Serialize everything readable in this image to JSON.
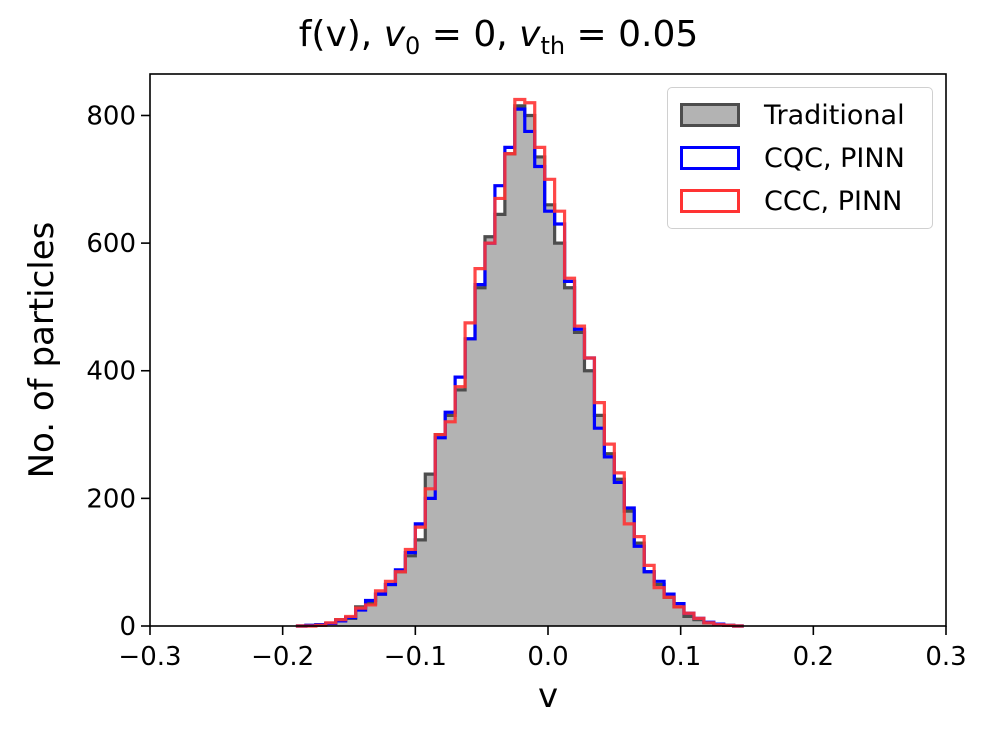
{
  "chart_data": {
    "type": "histogram",
    "title": {
      "prefix": "f(v), ",
      "v0_symbol": "v",
      "v0_sub": "0",
      "v0_value": " = 0, ",
      "vth_symbol": "v",
      "vth_sub": "th",
      "vth_value": " = 0.05"
    },
    "xlabel": "v",
    "ylabel": "No. of particles",
    "xlim": [
      -0.3,
      0.3
    ],
    "ylim": [
      0,
      865
    ],
    "xticks": [
      -0.3,
      -0.2,
      -0.1,
      0.0,
      0.1,
      0.2,
      0.3
    ],
    "xtick_labels": [
      "−0.3",
      "−0.2",
      "−0.1",
      "0.0",
      "0.1",
      "0.2",
      "0.3"
    ],
    "yticks": [
      0,
      200,
      400,
      600,
      800
    ],
    "ytick_labels": [
      "0",
      "200",
      "400",
      "600",
      "800"
    ],
    "bin_start": -0.19,
    "bin_width": 0.0075,
    "series": [
      {
        "name": "Traditional",
        "style": "filled",
        "fill": "#b3b3b3",
        "edge": "#4d4d4d",
        "values": [
          0,
          1,
          2,
          4,
          10,
          12,
          30,
          35,
          50,
          65,
          85,
          110,
          135,
          238,
          300,
          330,
          370,
          450,
          530,
          610,
          645,
          740,
          815,
          800,
          735,
          660,
          600,
          530,
          460,
          400,
          330,
          270,
          230,
          180,
          130,
          85,
          65,
          45,
          30,
          15,
          10,
          5,
          2,
          1,
          0
        ]
      },
      {
        "name": "CQC, PINN",
        "style": "step",
        "edge": "#0000ff",
        "values": [
          0,
          1,
          2,
          4,
          8,
          13,
          25,
          40,
          50,
          65,
          88,
          115,
          160,
          200,
          295,
          335,
          390,
          450,
          535,
          600,
          690,
          750,
          810,
          775,
          720,
          650,
          630,
          540,
          465,
          420,
          310,
          265,
          225,
          185,
          125,
          85,
          70,
          50,
          35,
          20,
          12,
          6,
          3,
          1,
          0
        ]
      },
      {
        "name": "CCC, PINN",
        "style": "step",
        "edge": "#ff3333",
        "values": [
          0,
          0,
          1,
          5,
          10,
          15,
          28,
          33,
          55,
          70,
          85,
          120,
          155,
          215,
          300,
          320,
          375,
          475,
          560,
          600,
          670,
          740,
          825,
          820,
          750,
          700,
          650,
          545,
          470,
          420,
          350,
          285,
          240,
          160,
          140,
          95,
          60,
          45,
          30,
          20,
          12,
          5,
          2,
          1,
          0
        ]
      }
    ],
    "legend_location": "upper right"
  }
}
